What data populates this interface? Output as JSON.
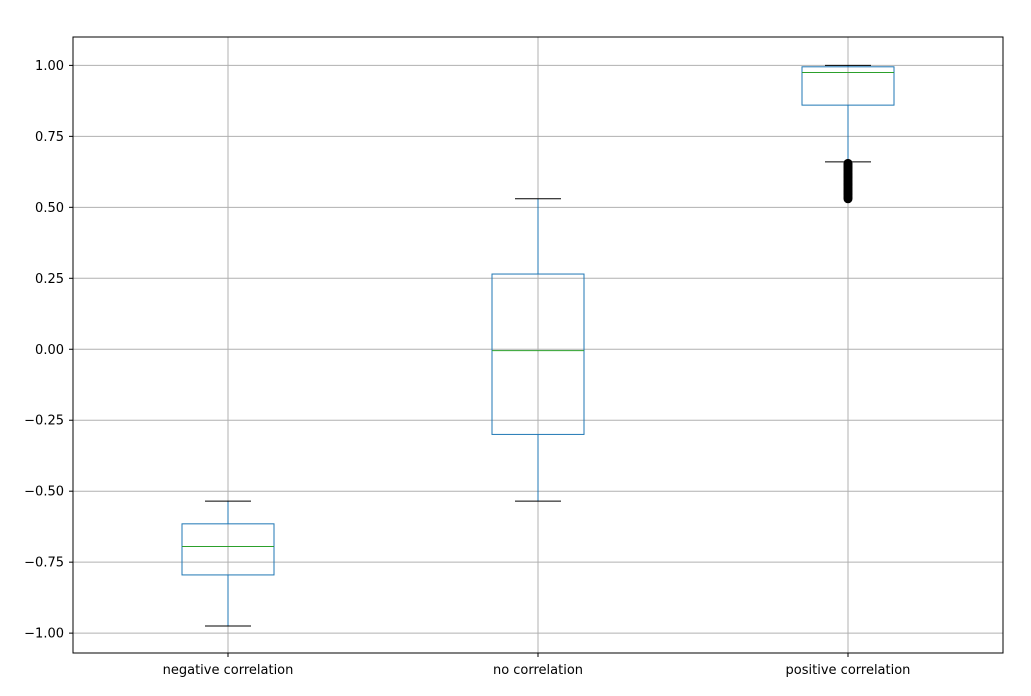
{
  "chart_data": {
    "type": "boxplot",
    "categories": [
      "negative correlation",
      "no correlation",
      "positive correlation"
    ],
    "ylim": [
      -1.07,
      1.1
    ],
    "yticks": [
      -1.0,
      -0.75,
      -0.5,
      -0.25,
      0.0,
      0.25,
      0.5,
      0.75,
      1.0
    ],
    "ytick_labels": [
      "−1.00",
      "−0.75",
      "−0.50",
      "−0.25",
      "0.00",
      "0.25",
      "0.50",
      "0.75",
      "1.00"
    ],
    "grid": true,
    "boxes": [
      {
        "category": "negative correlation",
        "whisker_low": -0.975,
        "q1": -0.795,
        "median": -0.695,
        "q3": -0.615,
        "whisker_high": -0.535,
        "outliers": []
      },
      {
        "category": "no correlation",
        "whisker_low": -0.535,
        "q1": -0.3,
        "median": -0.005,
        "q3": 0.265,
        "whisker_high": 0.53,
        "outliers": []
      },
      {
        "category": "positive correlation",
        "whisker_low": 0.66,
        "q1": 0.86,
        "median": 0.975,
        "q3": 0.995,
        "whisker_high": 1.0,
        "outliers": [
          0.655,
          0.65,
          0.645,
          0.64,
          0.635,
          0.63,
          0.625,
          0.62,
          0.615,
          0.61,
          0.605,
          0.6,
          0.595,
          0.59,
          0.585,
          0.58,
          0.575,
          0.57,
          0.565,
          0.56,
          0.555,
          0.55,
          0.545,
          0.54,
          0.535,
          0.53
        ]
      }
    ],
    "colors": {
      "box": "#1f77b4",
      "median": "#2ca02c",
      "whisker_cap": "#000000",
      "grid": "#b0b0b0",
      "outlier": "#000000"
    }
  }
}
